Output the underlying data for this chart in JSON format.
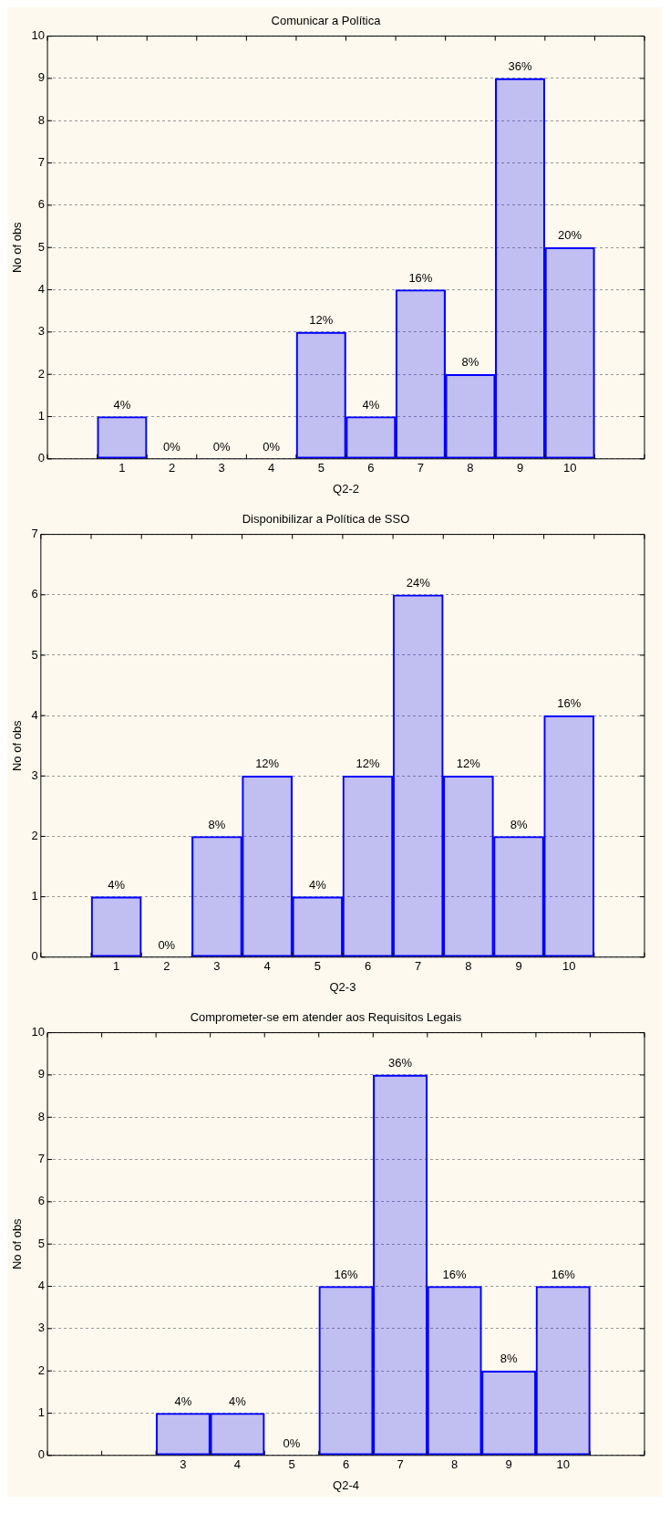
{
  "chart_data": [
    {
      "type": "bar",
      "title": "Comunicar a Política",
      "xlabel": "Q2-2",
      "ylabel": "No of obs",
      "categories": [
        null,
        "1",
        "2",
        "3",
        "4",
        "5",
        "6",
        "7",
        "8",
        "9",
        "10",
        null
      ],
      "values": [
        null,
        1,
        0,
        0,
        0,
        3,
        1,
        4,
        2,
        9,
        5,
        null
      ],
      "color": "#0000ff",
      "annotations": [
        {
          "text": "4%",
          "x": "1",
          "y": 1
        },
        {
          "text": "0%",
          "x": "2",
          "y": 0
        },
        {
          "text": "0%",
          "x": "3",
          "y": 0
        },
        {
          "text": "0%",
          "x": "4",
          "y": 0
        },
        {
          "text": "12%",
          "x": "5",
          "y": 3
        },
        {
          "text": "4%",
          "x": "6",
          "y": 1
        },
        {
          "text": "16%",
          "x": "7",
          "y": 4
        },
        {
          "text": "8%",
          "x": "8",
          "y": 2
        },
        {
          "text": "36%",
          "x": "9",
          "y": 9
        },
        {
          "text": "20%",
          "x": "10",
          "y": 5
        }
      ],
      "ylim": [
        0,
        10
      ],
      "yticks": [
        0,
        1,
        2,
        3,
        4,
        5,
        6,
        7,
        8,
        9,
        10
      ],
      "grid": "y",
      "legend": false
    },
    {
      "type": "bar",
      "title": "Disponibilizar a Política de SSO",
      "xlabel": "Q2-3",
      "ylabel": "No of obs",
      "categories": [
        null,
        "1",
        "2",
        "3",
        "4",
        "5",
        "6",
        "7",
        "8",
        "9",
        "10",
        null
      ],
      "values": [
        null,
        1,
        0,
        2,
        3,
        1,
        3,
        6,
        3,
        2,
        4,
        null
      ],
      "color": "#0000ff",
      "annotations": [
        {
          "text": "4%",
          "x": "1",
          "y": 1
        },
        {
          "text": "0%",
          "x": "2",
          "y": 0
        },
        {
          "text": "8%",
          "x": "3",
          "y": 2
        },
        {
          "text": "12%",
          "x": "4",
          "y": 3
        },
        {
          "text": "4%",
          "x": "5",
          "y": 1
        },
        {
          "text": "12%",
          "x": "6",
          "y": 3
        },
        {
          "text": "24%",
          "x": "7",
          "y": 6
        },
        {
          "text": "12%",
          "x": "8",
          "y": 3
        },
        {
          "text": "8%",
          "x": "9",
          "y": 2
        },
        {
          "text": "16%",
          "x": "10",
          "y": 4
        }
      ],
      "ylim": [
        0,
        7
      ],
      "yticks": [
        0,
        1,
        2,
        3,
        4,
        5,
        6,
        7
      ],
      "grid": "y",
      "legend": false
    },
    {
      "type": "bar",
      "title": "Comprometer-se em atender aos Requisitos Legais",
      "xlabel": "Q2-4",
      "ylabel": "No of obs",
      "categories": [
        null,
        null,
        "3",
        "4",
        "5",
        "6",
        "7",
        "8",
        "9",
        "10",
        null
      ],
      "values": [
        null,
        null,
        1,
        1,
        0,
        4,
        9,
        4,
        2,
        4,
        null
      ],
      "color": "#0000ff",
      "annotations": [
        {
          "text": "4%",
          "x": "3",
          "y": 1
        },
        {
          "text": "4%",
          "x": "4",
          "y": 1
        },
        {
          "text": "0%",
          "x": "5",
          "y": 0
        },
        {
          "text": "16%",
          "x": "6",
          "y": 4
        },
        {
          "text": "36%",
          "x": "7",
          "y": 9
        },
        {
          "text": "16%",
          "x": "8",
          "y": 4
        },
        {
          "text": "8%",
          "x": "9",
          "y": 2
        },
        {
          "text": "16%",
          "x": "10",
          "y": 4
        }
      ],
      "ylim": [
        0,
        10
      ],
      "yticks": [
        0,
        1,
        2,
        3,
        4,
        5,
        6,
        7,
        8,
        9,
        10
      ],
      "grid": "y",
      "legend": false
    }
  ]
}
